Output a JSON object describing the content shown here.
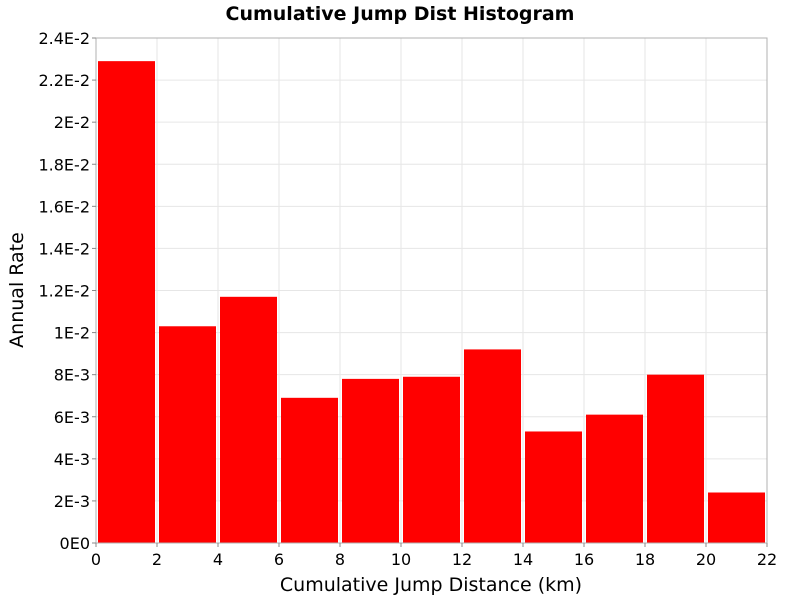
{
  "chart_data": {
    "type": "bar",
    "title": "Cumulative Jump Dist Histogram",
    "xlabel": "Cumulative Jump Distance (km)",
    "ylabel": "Annual Rate",
    "xlim": [
      0,
      22
    ],
    "ylim": [
      0,
      0.024
    ],
    "x_ticks": [
      "0",
      "2",
      "4",
      "6",
      "8",
      "10",
      "12",
      "14",
      "16",
      "18",
      "20",
      "22"
    ],
    "y_ticks": [
      "0E0",
      "2E-3",
      "4E-3",
      "6E-3",
      "8E-3",
      "1E-2",
      "1.2E-2",
      "1.4E-2",
      "1.6E-2",
      "1.8E-2",
      "2E-2",
      "2.2E-2",
      "2.4E-2"
    ],
    "bins": [
      {
        "x_start": 0,
        "x_end": 2,
        "value": 0.0229
      },
      {
        "x_start": 2,
        "x_end": 4,
        "value": 0.0103
      },
      {
        "x_start": 4,
        "x_end": 6,
        "value": 0.0117
      },
      {
        "x_start": 6,
        "x_end": 8,
        "value": 0.0069
      },
      {
        "x_start": 8,
        "x_end": 10,
        "value": 0.0078
      },
      {
        "x_start": 10,
        "x_end": 12,
        "value": 0.0079
      },
      {
        "x_start": 12,
        "x_end": 14,
        "value": 0.0092
      },
      {
        "x_start": 14,
        "x_end": 16,
        "value": 0.0053
      },
      {
        "x_start": 16,
        "x_end": 18,
        "value": 0.0061
      },
      {
        "x_start": 18,
        "x_end": 20,
        "value": 0.008
      },
      {
        "x_start": 20,
        "x_end": 22,
        "value": 0.0024
      }
    ],
    "bar_color": "#ff0000",
    "grid": true,
    "grid_color": "#e6e6e6",
    "background_color": "#ffffff",
    "plot_border_color": "#b0b0b0"
  }
}
